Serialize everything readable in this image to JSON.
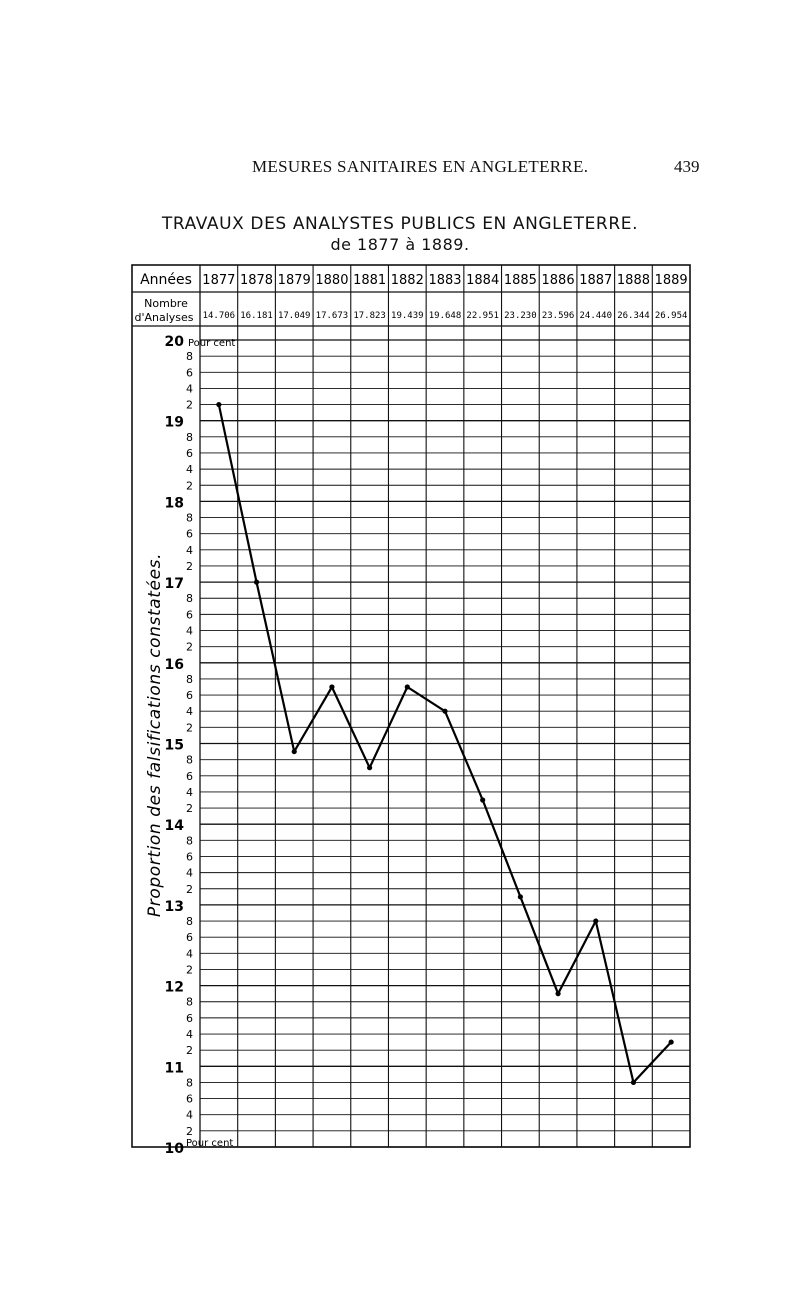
{
  "page": {
    "running_title": "MESURES SANITAIRES EN ANGLETERRE.",
    "page_number": "439"
  },
  "chart_data": {
    "type": "line",
    "title": "TRAVAUX DES ANALYSTES PUBLICS EN ANGLETERRE.",
    "subtitle": "de 1877 à 1889.",
    "row_label_years": "Années",
    "row_label_count": "Nombre d'Analyses",
    "categories": [
      "1877",
      "1878",
      "1879",
      "1880",
      "1881",
      "1882",
      "1883",
      "1884",
      "1885",
      "1886",
      "1887",
      "1888",
      "1889"
    ],
    "analyses_count": [
      "14.706",
      "16.181",
      "17.049",
      "17.673",
      "17.823",
      "19.439",
      "19.648",
      "22.951",
      "23.230",
      "23.596",
      "24.440",
      "26.344",
      "26.954"
    ],
    "ylabel": "Proportion des falsifications constatées.",
    "ylim": [
      10,
      20
    ],
    "y_top_label": "Pour cent",
    "y_bottom_label": "Pour cent",
    "y_major_ticks": [
      "20",
      "19",
      "18",
      "17",
      "16",
      "15",
      "14",
      "13",
      "12",
      "11",
      "10"
    ],
    "y_minor_ticks": [
      "8",
      "6",
      "4",
      "2"
    ],
    "grid": true,
    "series": [
      {
        "values": [
          19.2,
          17.0,
          14.9,
          15.7,
          14.7,
          15.7,
          15.4,
          14.3,
          13.1,
          11.9,
          12.8,
          10.8,
          11.3
        ]
      }
    ]
  }
}
